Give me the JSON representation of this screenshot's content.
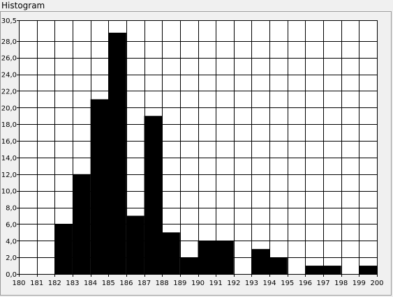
{
  "panel": {
    "title": "Histogram"
  },
  "chart_data": {
    "type": "bar",
    "title": "Histogram",
    "xlabel": "",
    "ylabel": "",
    "x_ticks": [
      "180",
      "181",
      "182",
      "183",
      "184",
      "185",
      "186",
      "187",
      "188",
      "189",
      "190",
      "191",
      "192",
      "193",
      "194",
      "195",
      "196",
      "197",
      "198",
      "199",
      "200"
    ],
    "y_ticks": [
      "0,0",
      "2,0",
      "4,0",
      "6,0",
      "8,0",
      "10,0",
      "12,0",
      "14,0",
      "16,0",
      "18,0",
      "20,0",
      "22,0",
      "24,0",
      "26,0",
      "28,0",
      "30,5"
    ],
    "xlim": [
      180,
      200
    ],
    "ylim": [
      0,
      30.5
    ],
    "grid": true,
    "bins": [
      {
        "from": 180,
        "to": 181,
        "value": 0
      },
      {
        "from": 181,
        "to": 182,
        "value": 0
      },
      {
        "from": 182,
        "to": 183,
        "value": 6
      },
      {
        "from": 183,
        "to": 184,
        "value": 12
      },
      {
        "from": 184,
        "to": 185,
        "value": 21
      },
      {
        "from": 185,
        "to": 186,
        "value": 29
      },
      {
        "from": 186,
        "to": 187,
        "value": 7
      },
      {
        "from": 187,
        "to": 188,
        "value": 19
      },
      {
        "from": 188,
        "to": 189,
        "value": 5
      },
      {
        "from": 189,
        "to": 190,
        "value": 2
      },
      {
        "from": 190,
        "to": 191,
        "value": 4
      },
      {
        "from": 191,
        "to": 192,
        "value": 4
      },
      {
        "from": 192,
        "to": 193,
        "value": 0
      },
      {
        "from": 193,
        "to": 194,
        "value": 3
      },
      {
        "from": 194,
        "to": 195,
        "value": 2
      },
      {
        "from": 195,
        "to": 196,
        "value": 0
      },
      {
        "from": 196,
        "to": 197,
        "value": 1
      },
      {
        "from": 197,
        "to": 198,
        "value": 1
      },
      {
        "from": 198,
        "to": 199,
        "value": 0
      },
      {
        "from": 199,
        "to": 200,
        "value": 1
      }
    ],
    "colors": {
      "bar": "#000000",
      "grid": "#000000",
      "background": "#ffffff"
    }
  }
}
